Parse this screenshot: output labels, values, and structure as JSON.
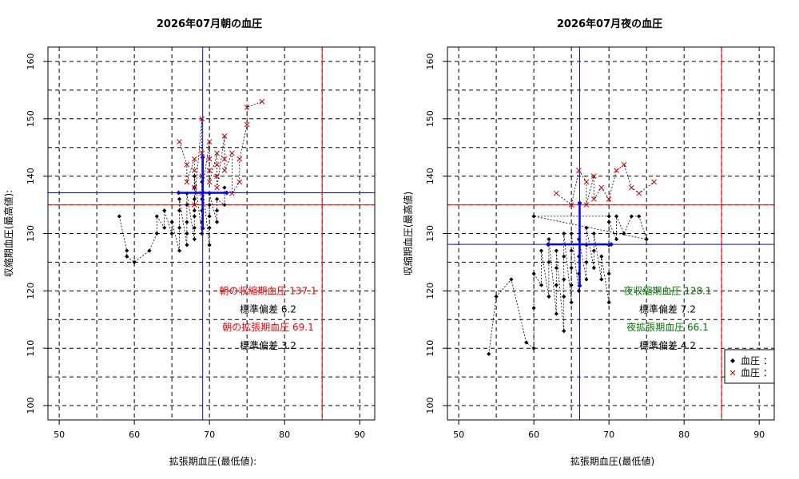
{
  "chart_data": [
    {
      "type": "scatter",
      "title": "2026年07月朝の血圧",
      "xlabel": "拡張期血圧(最低値):",
      "ylabel": "収縮期血圧(最高値):",
      "xlim": [
        48.5,
        92
      ],
      "ylim": [
        97.5,
        162.5
      ],
      "xticks": [
        50,
        60,
        70,
        80,
        90
      ],
      "yticks": [
        100,
        110,
        120,
        130,
        140,
        150,
        160
      ],
      "grid": true,
      "mean_diastolic": 69.1,
      "mean_systolic": 137.1,
      "sd_diastolic": 3.2,
      "sd_systolic": 6.2,
      "reference_lines": {
        "diastolic": 85,
        "systolic": 135,
        "color": "#ff0000"
      },
      "mean_cross_color": "#0000ff",
      "annotations": [
        {
          "text": "朝の収縮期血圧 137.1",
          "color": "#ff0000"
        },
        {
          "text": "標準偏差 6.2",
          "color": "#000000"
        },
        {
          "text": "朝の拡張期血圧 69.1",
          "color": "#ff0000"
        },
        {
          "text": "標準偏差 3.2",
          "color": "#000000"
        }
      ],
      "markers": [
        {
          "name": "diastolic-points",
          "shape": "diamond",
          "color": "#000000",
          "points": [
            [
              58,
              133
            ],
            [
              59,
              127
            ],
            [
              59,
              126
            ],
            [
              60,
              125
            ],
            [
              62,
              127
            ],
            [
              63,
              130
            ],
            [
              63,
              133
            ],
            [
              64,
              131
            ],
            [
              64,
              134
            ],
            [
              65,
              130
            ],
            [
              65,
              132
            ],
            [
              66,
              127
            ],
            [
              66,
              131
            ],
            [
              66,
              134
            ],
            [
              66,
              136
            ],
            [
              67,
              128
            ],
            [
              67,
              130
            ],
            [
              67,
              132
            ],
            [
              67,
              135
            ],
            [
              67,
              137
            ],
            [
              68,
              129
            ],
            [
              68,
              131
            ],
            [
              68,
              133
            ],
            [
              68,
              134
            ],
            [
              68,
              136
            ],
            [
              68,
              138
            ],
            [
              68,
              140
            ],
            [
              69,
              130
            ],
            [
              69,
              132
            ],
            [
              69,
              134
            ],
            [
              69,
              136
            ],
            [
              69,
              139
            ],
            [
              70,
              128
            ],
            [
              70,
              131
            ],
            [
              70,
              133
            ],
            [
              70,
              135
            ],
            [
              70,
              137
            ],
            [
              71,
              132
            ],
            [
              71,
              134
            ],
            [
              71,
              136
            ],
            [
              72,
              135
            ],
            [
              72,
              138
            ]
          ]
        },
        {
          "name": "systolic-points",
          "shape": "x",
          "color": "#cc0000",
          "points": [
            [
              66,
              146
            ],
            [
              67,
              142
            ],
            [
              67,
              139
            ],
            [
              68,
              143
            ],
            [
              68,
              141
            ],
            [
              68,
              138
            ],
            [
              68,
              135
            ],
            [
              69,
              150
            ],
            [
              69,
              144
            ],
            [
              69,
              140
            ],
            [
              69,
              137
            ],
            [
              70,
              146
            ],
            [
              70,
              143
            ],
            [
              70,
              141
            ],
            [
              70,
              139
            ],
            [
              71,
              144
            ],
            [
              71,
              142
            ],
            [
              71,
              140
            ],
            [
              71,
              138
            ],
            [
              72,
              147
            ],
            [
              72,
              143
            ],
            [
              72,
              141
            ],
            [
              73,
              144
            ],
            [
              73,
              137
            ],
            [
              74,
              139
            ],
            [
              74,
              143
            ],
            [
              75,
              149
            ],
            [
              75,
              152
            ],
            [
              77,
              153
            ]
          ]
        }
      ]
    },
    {
      "type": "scatter",
      "title": "2026年07月夜の血圧",
      "xlabel": "拡張期血圧(最低値)",
      "ylabel": "収縮期血圧(最高値)",
      "xlim": [
        48.5,
        92
      ],
      "ylim": [
        97.5,
        162.5
      ],
      "xticks": [
        50,
        60,
        70,
        80,
        90
      ],
      "yticks": [
        100,
        110,
        120,
        130,
        140,
        150,
        160
      ],
      "grid": true,
      "mean_diastolic": 66.1,
      "mean_systolic": 128.1,
      "sd_diastolic": 4.2,
      "sd_systolic": 7.2,
      "reference_lines": {
        "diastolic": 85,
        "systolic": 135,
        "color": "#ff0000"
      },
      "mean_cross_color": "#0000ff",
      "annotations": [
        {
          "text": "夜収縮期血圧 128.1",
          "color": "#007700"
        },
        {
          "text": "標準偏差 7.2",
          "color": "#000000"
        },
        {
          "text": "夜拡張期血圧 66.1",
          "color": "#007700"
        },
        {
          "text": "標準偏差 4.2",
          "color": "#000000"
        }
      ],
      "legend": {
        "placement": "bottom-right",
        "entries": [
          {
            "label": "血圧 ：",
            "shape": "diamond",
            "color": "#000000"
          },
          {
            "label": "血圧 ：",
            "shape": "x",
            "color": "#cc0000"
          }
        ]
      },
      "markers": [
        {
          "name": "diastolic-points",
          "shape": "diamond",
          "color": "#000000",
          "points": [
            [
              54,
              109
            ],
            [
              55,
              119
            ],
            [
              57,
              122
            ],
            [
              59,
              111
            ],
            [
              60,
              110
            ],
            [
              60,
              117
            ],
            [
              60,
              123
            ],
            [
              61,
              121
            ],
            [
              61,
              127
            ],
            [
              62,
              119
            ],
            [
              62,
              125
            ],
            [
              62,
              129
            ],
            [
              63,
              116
            ],
            [
              63,
              121
            ],
            [
              63,
              124
            ],
            [
              63,
              127
            ],
            [
              64,
              113
            ],
            [
              64,
              119
            ],
            [
              64,
              122
            ],
            [
              64,
              126
            ],
            [
              64,
              130
            ],
            [
              65,
              118
            ],
            [
              65,
              121
            ],
            [
              65,
              124
            ],
            [
              65,
              127
            ],
            [
              65,
              130
            ],
            [
              66,
              120
            ],
            [
              66,
              123
            ],
            [
              66,
              126
            ],
            [
              66,
              129
            ],
            [
              67,
              122
            ],
            [
              67,
              125
            ],
            [
              67,
              128
            ],
            [
              67,
              131
            ],
            [
              68,
              124
            ],
            [
              68,
              127
            ],
            [
              68,
              130
            ],
            [
              69,
              122
            ],
            [
              69,
              126
            ],
            [
              70,
              118
            ],
            [
              70,
              123
            ],
            [
              70,
              128
            ],
            [
              70,
              132
            ],
            [
              71,
              129
            ],
            [
              71,
              133
            ],
            [
              72,
              130
            ],
            [
              73,
              133
            ],
            [
              74,
              133
            ],
            [
              75,
              129
            ],
            [
              60,
              133
            ],
            [
              70,
              133
            ]
          ]
        },
        {
          "name": "systolic-points",
          "shape": "x",
          "color": "#cc0000",
          "points": [
            [
              63,
              137
            ],
            [
              65,
              135
            ],
            [
              66,
              141
            ],
            [
              67,
              139
            ],
            [
              67,
              135
            ],
            [
              68,
              140
            ],
            [
              68,
              136
            ],
            [
              69,
              138
            ],
            [
              70,
              136
            ],
            [
              71,
              141
            ],
            [
              72,
              142
            ],
            [
              73,
              138
            ],
            [
              74,
              137
            ],
            [
              76,
              139
            ]
          ]
        }
      ]
    }
  ]
}
